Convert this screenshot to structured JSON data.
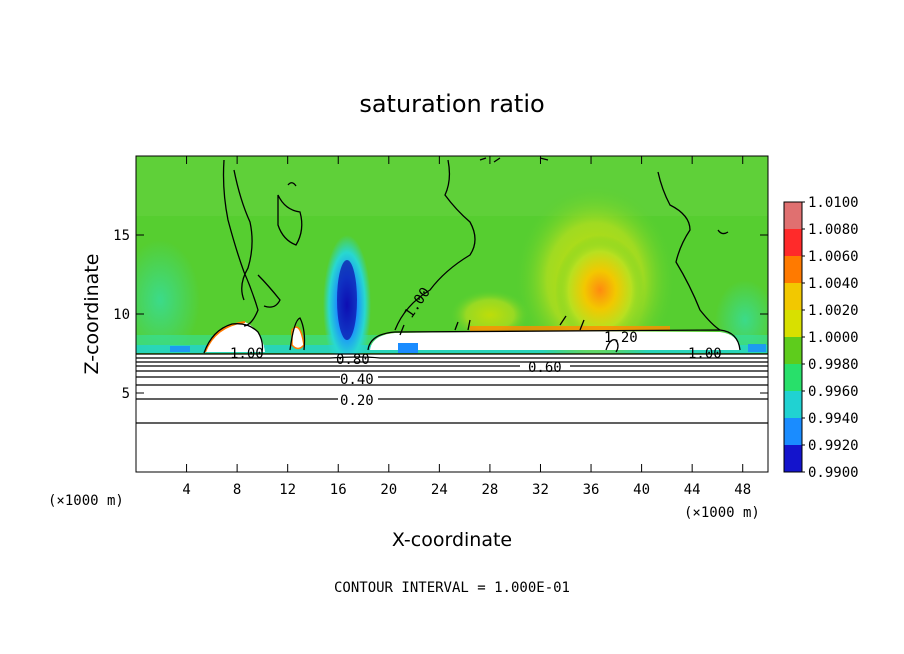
{
  "chart_data": {
    "type": "heatmap",
    "title": "saturation ratio",
    "xlabel": "X-coordinate",
    "ylabel": "Z-coordinate",
    "x_unit": "(×1000 m)",
    "xlim": [
      0,
      50
    ],
    "ylim": [
      0,
      20
    ],
    "x_ticks": [
      4,
      8,
      12,
      16,
      20,
      24,
      28,
      32,
      36,
      40,
      44,
      48
    ],
    "y_ticks": [
      5,
      10,
      15
    ],
    "colorbar": {
      "min": 0.99,
      "max": 1.01,
      "labels": [
        "1.0100",
        "1.0080",
        "1.0060",
        "1.0040",
        "1.0020",
        "1.0000",
        "0.9980",
        "0.9960",
        "0.9940",
        "0.9920",
        "0.9900"
      ],
      "colors": [
        "#e07070",
        "#ff2a2a",
        "#ff7a00",
        "#f2c800",
        "#d8e000",
        "#5ecc1c",
        "#28e06a",
        "#20d2d2",
        "#1a8cff",
        "#1414cc",
        "#5a1a9a"
      ]
    },
    "contour_labels": [
      {
        "text": "1.00",
        "x": 8.5,
        "y": 7.7
      },
      {
        "text": "1.00",
        "x": 21.5,
        "y": 10.5
      },
      {
        "text": "1.00",
        "x": 43.5,
        "y": 7.7
      },
      {
        "text": "1.20",
        "x": 38.0,
        "y": 8.4
      },
      {
        "text": "0.80",
        "x": 17.5,
        "y": 7.2
      },
      {
        "text": "0.60",
        "x": 32.5,
        "y": 6.6
      },
      {
        "text": "0.40",
        "x": 17.5,
        "y": 5.9
      },
      {
        "text": "0.20",
        "x": 17.5,
        "y": 4.7
      }
    ],
    "footer": "CONTOUR INTERVAL = 1.000E-01"
  }
}
